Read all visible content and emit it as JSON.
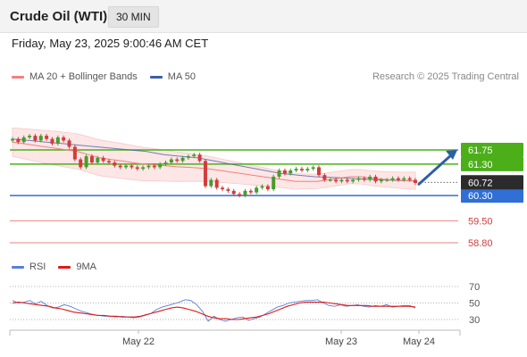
{
  "header": {
    "title": "Crude Oil (WTI)",
    "interval": "30 MIN"
  },
  "datetime": "Friday, May 23, 2025 9:00:46 AM CET",
  "legend": {
    "ma20_label": "MA 20 + Bollinger Bands",
    "ma50_label": "MA 50",
    "credit": "Research © 2025 Trading Central",
    "rsi_label": "RSI",
    "rsi_ma_label": "9MA"
  },
  "colors": {
    "ma20": "#f08080",
    "ma50": "#3b5fa8",
    "bollinger": "#fde6e6",
    "green_level": "#4caf1a",
    "blue_level": "#2f6fd6",
    "red_level": "#e05050",
    "candle_up": "#4a9a2e",
    "candle_down": "#d43b3b",
    "arrow": "#2f5ea8",
    "current_price_bg": "#2b2b2b",
    "rsi": "#5b7fd6",
    "rsi_ma": "#e01818"
  },
  "chart_data": [
    {
      "type": "candlestick",
      "x_ticks": [
        "May 22",
        "May 23",
        "May 24"
      ],
      "ylim": [
        58.4,
        62.6
      ],
      "current_price": "60.72",
      "levels": [
        {
          "label": "61.75",
          "value": 61.75,
          "kind": "resistance"
        },
        {
          "label": "61.30",
          "value": 61.3,
          "kind": "resistance"
        },
        {
          "label": "60.30",
          "value": 60.3,
          "kind": "pivot"
        },
        {
          "label": "59.50",
          "value": 59.5,
          "kind": "support"
        },
        {
          "label": "58.80",
          "value": 58.8,
          "kind": "support"
        }
      ],
      "close": [
        62.1,
        62.0,
        62.15,
        62.2,
        62.05,
        62.2,
        62.1,
        61.95,
        62.15,
        62.05,
        61.85,
        61.45,
        61.2,
        61.55,
        61.35,
        61.5,
        61.4,
        61.35,
        61.25,
        61.2,
        61.25,
        61.2,
        61.15,
        61.2,
        61.25,
        61.2,
        61.3,
        61.35,
        61.45,
        61.4,
        61.5,
        61.55,
        61.6,
        61.4,
        60.6,
        60.8,
        60.55,
        60.5,
        60.45,
        60.35,
        60.3,
        60.45,
        60.4,
        60.55,
        60.6,
        60.5,
        60.9,
        61.1,
        61.0,
        61.1,
        61.15,
        61.1,
        61.15,
        61.2,
        60.95,
        60.8,
        60.8,
        60.75,
        60.8,
        60.75,
        60.8,
        60.85,
        60.8,
        60.9,
        60.75,
        60.8,
        60.8,
        60.85,
        60.8,
        60.85,
        60.8,
        60.7
      ],
      "ma20": [
        62.0,
        61.95,
        61.9,
        61.85,
        61.8,
        61.75,
        61.7,
        61.6,
        61.5,
        61.45,
        61.4,
        61.35,
        61.3,
        61.28,
        61.25,
        61.22,
        61.2,
        61.18,
        61.15,
        61.1,
        61.05,
        61.0,
        60.95,
        60.9,
        60.85,
        60.8,
        60.75,
        60.75,
        60.75,
        60.8,
        60.85,
        60.9,
        60.9,
        60.85,
        60.82,
        60.8,
        60.78,
        60.77
      ],
      "ma50": [
        62.1,
        62.05,
        62.0,
        61.95,
        61.9,
        61.85,
        61.8,
        61.75,
        61.7,
        61.6,
        61.55,
        61.5,
        61.4,
        61.3,
        61.2,
        61.1,
        61.0,
        60.95,
        60.9,
        60.88,
        60.85,
        60.82,
        60.8,
        60.78,
        60.76
      ],
      "forecast_arrow": {
        "from": 60.72,
        "to": 61.75
      }
    },
    {
      "type": "line",
      "title": "RSI",
      "yticks": [
        70,
        50,
        30
      ],
      "ylim": [
        20,
        75
      ],
      "series": [
        {
          "name": "RSI",
          "values": [
            53,
            50,
            51,
            53,
            49,
            52,
            47,
            44,
            45,
            48,
            46,
            43,
            40,
            38,
            36,
            35,
            34,
            34,
            33,
            34,
            33,
            32,
            33,
            35,
            37,
            42,
            45,
            47,
            49,
            51,
            54,
            53,
            48,
            40,
            28,
            34,
            30,
            28,
            30,
            32,
            33,
            29,
            31,
            33,
            37,
            41,
            45,
            47,
            50,
            51,
            52,
            53,
            53,
            54,
            50,
            47,
            46,
            48,
            46,
            47,
            48,
            46,
            45,
            47,
            46,
            48,
            45,
            46,
            47,
            47,
            44
          ]
        },
        {
          "name": "9MA",
          "values": [
            50,
            51,
            50,
            49,
            48,
            47,
            46,
            44,
            43,
            41,
            39,
            38,
            37,
            36,
            35,
            35,
            34,
            34,
            33,
            33,
            33,
            34,
            36,
            38,
            40,
            42,
            44,
            45,
            44,
            42,
            40,
            37,
            34,
            32,
            31,
            31,
            30,
            30,
            31,
            32,
            33,
            35,
            37,
            40,
            43,
            46,
            48,
            50,
            51,
            51,
            51,
            51,
            50,
            49,
            48,
            47,
            47,
            47,
            47,
            46,
            46,
            46,
            46,
            46,
            46,
            46,
            45
          ]
        }
      ]
    }
  ]
}
